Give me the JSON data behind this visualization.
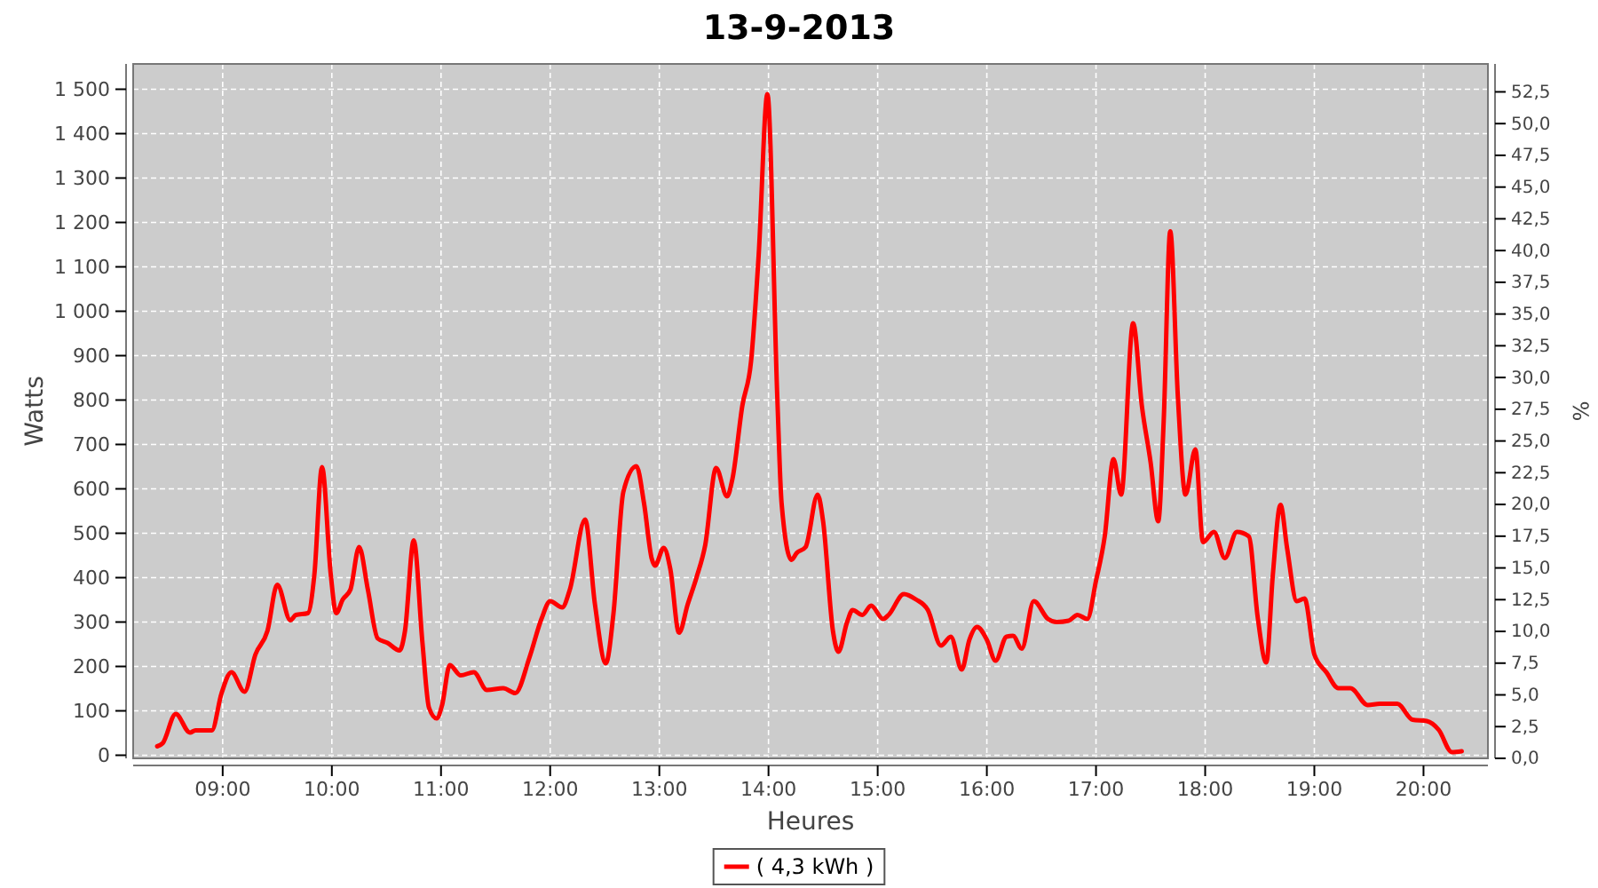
{
  "chart_data": {
    "type": "line",
    "title": "13-9-2013",
    "xlabel": "Heures",
    "ylabel": "Watts",
    "y2label": "%",
    "xlim": [
      8.18,
      20.59
    ],
    "xticks": [
      {
        "value": 9,
        "label": "09:00"
      },
      {
        "value": 10,
        "label": "10:00"
      },
      {
        "value": 11,
        "label": "11:00"
      },
      {
        "value": 12,
        "label": "12:00"
      },
      {
        "value": 13,
        "label": "13:00"
      },
      {
        "value": 14,
        "label": "14:00"
      },
      {
        "value": 15,
        "label": "15:00"
      },
      {
        "value": 16,
        "label": "16:00"
      },
      {
        "value": 17,
        "label": "17:00"
      },
      {
        "value": 18,
        "label": "18:00"
      },
      {
        "value": 19,
        "label": "19:00"
      },
      {
        "value": 20,
        "label": "20:00"
      }
    ],
    "ylim": [
      -7,
      1557
    ],
    "yticks": [
      0,
      100,
      200,
      300,
      400,
      500,
      600,
      700,
      800,
      900,
      {
        "value": 1000,
        "label": "1 000"
      },
      {
        "value": 1100,
        "label": "1 100"
      },
      {
        "value": 1200,
        "label": "1 200"
      },
      {
        "value": 1300,
        "label": "1 300"
      },
      {
        "value": 1400,
        "label": "1 400"
      },
      {
        "value": 1500,
        "label": "1 500"
      }
    ],
    "y2lim": [
      0,
      54.7
    ],
    "y2ticks": [
      {
        "value": 0,
        "label": "0,0"
      },
      {
        "value": 2.5,
        "label": "2,5"
      },
      {
        "value": 5,
        "label": "5,0"
      },
      {
        "value": 7.5,
        "label": "7,5"
      },
      {
        "value": 10,
        "label": "10,0"
      },
      {
        "value": 12.5,
        "label": "12,5"
      },
      {
        "value": 15,
        "label": "15,0"
      },
      {
        "value": 17.5,
        "label": "17,5"
      },
      {
        "value": 20,
        "label": "20,0"
      },
      {
        "value": 22.5,
        "label": "22,5"
      },
      {
        "value": 25,
        "label": "25,0"
      },
      {
        "value": 27.5,
        "label": "27,5"
      },
      {
        "value": 30,
        "label": "30,0"
      },
      {
        "value": 32.5,
        "label": "32,5"
      },
      {
        "value": 35,
        "label": "35,0"
      },
      {
        "value": 37.5,
        "label": "37,5"
      },
      {
        "value": 40,
        "label": "40,0"
      },
      {
        "value": 42.5,
        "label": "42,5"
      },
      {
        "value": 45,
        "label": "45,0"
      },
      {
        "value": 47.5,
        "label": "47,5"
      },
      {
        "value": 50,
        "label": "50,0"
      },
      {
        "value": 52.5,
        "label": "52,5"
      }
    ],
    "grid": true,
    "legend": "bottom",
    "line_style": "solid",
    "series": [
      {
        "name": "( 4,3 kWh )",
        "color": "#ff0000",
        "x": [
          8.4,
          8.45,
          8.57,
          8.7,
          8.75,
          8.9,
          8.99,
          9.08,
          9.2,
          9.3,
          9.41,
          9.5,
          9.62,
          9.67,
          9.78,
          9.84,
          9.91,
          9.99,
          10.04,
          10.1,
          10.17,
          10.25,
          10.33,
          10.42,
          10.51,
          10.62,
          10.67,
          10.75,
          10.83,
          10.89,
          10.96,
          11.01,
          11.08,
          11.18,
          11.3,
          11.42,
          11.57,
          11.68,
          11.81,
          11.92,
          12.0,
          12.11,
          12.18,
          12.32,
          12.41,
          12.51,
          12.58,
          12.67,
          12.79,
          12.86,
          12.93,
          12.96,
          13.04,
          13.1,
          13.18,
          13.26,
          13.34,
          13.42,
          13.52,
          13.62,
          13.67,
          13.76,
          13.84,
          13.91,
          13.99,
          14.08,
          14.12,
          14.21,
          14.26,
          14.34,
          14.45,
          14.5,
          14.59,
          14.64,
          14.72,
          14.77,
          14.86,
          14.94,
          15.05,
          15.1,
          15.24,
          15.35,
          15.46,
          15.58,
          15.67,
          15.77,
          15.84,
          15.91,
          16.0,
          16.08,
          16.18,
          16.24,
          16.32,
          16.43,
          16.56,
          16.64,
          16.75,
          16.83,
          16.92,
          17.0,
          17.08,
          17.16,
          17.23,
          17.34,
          17.42,
          17.5,
          17.57,
          17.62,
          17.68,
          17.75,
          17.82,
          17.91,
          17.98,
          18.08,
          18.18,
          18.29,
          18.4,
          18.48,
          18.56,
          18.62,
          18.69,
          18.75,
          18.84,
          18.91,
          19.0,
          19.11,
          19.22,
          19.33,
          19.49,
          19.6,
          19.76,
          19.9,
          20.03,
          20.14,
          20.26,
          20.35
        ],
        "values": [
          20,
          27,
          93,
          51,
          56,
          56,
          140,
          187,
          143,
          227,
          280,
          384,
          304,
          316,
          320,
          407,
          649,
          407,
          320,
          351,
          373,
          469,
          373,
          263,
          253,
          236,
          280,
          484,
          253,
          107,
          83,
          113,
          203,
          180,
          187,
          147,
          151,
          140,
          220,
          307,
          347,
          333,
          373,
          531,
          340,
          207,
          320,
          593,
          651,
          567,
          443,
          427,
          467,
          420,
          276,
          340,
          400,
          473,
          647,
          583,
          623,
          787,
          887,
          1127,
          1489,
          809,
          567,
          440,
          456,
          469,
          587,
          527,
          280,
          233,
          300,
          327,
          316,
          337,
          307,
          316,
          363,
          351,
          327,
          247,
          267,
          193,
          260,
          289,
          260,
          213,
          267,
          269,
          240,
          347,
          307,
          300,
          303,
          316,
          307,
          393,
          493,
          667,
          587,
          973,
          787,
          660,
          527,
          753,
          1180,
          807,
          587,
          689,
          480,
          503,
          444,
          503,
          493,
          313,
          209,
          407,
          564,
          467,
          347,
          353,
          227,
          187,
          151,
          151,
          113,
          116,
          116,
          80,
          77,
          57,
          7,
          9
        ]
      }
    ]
  }
}
